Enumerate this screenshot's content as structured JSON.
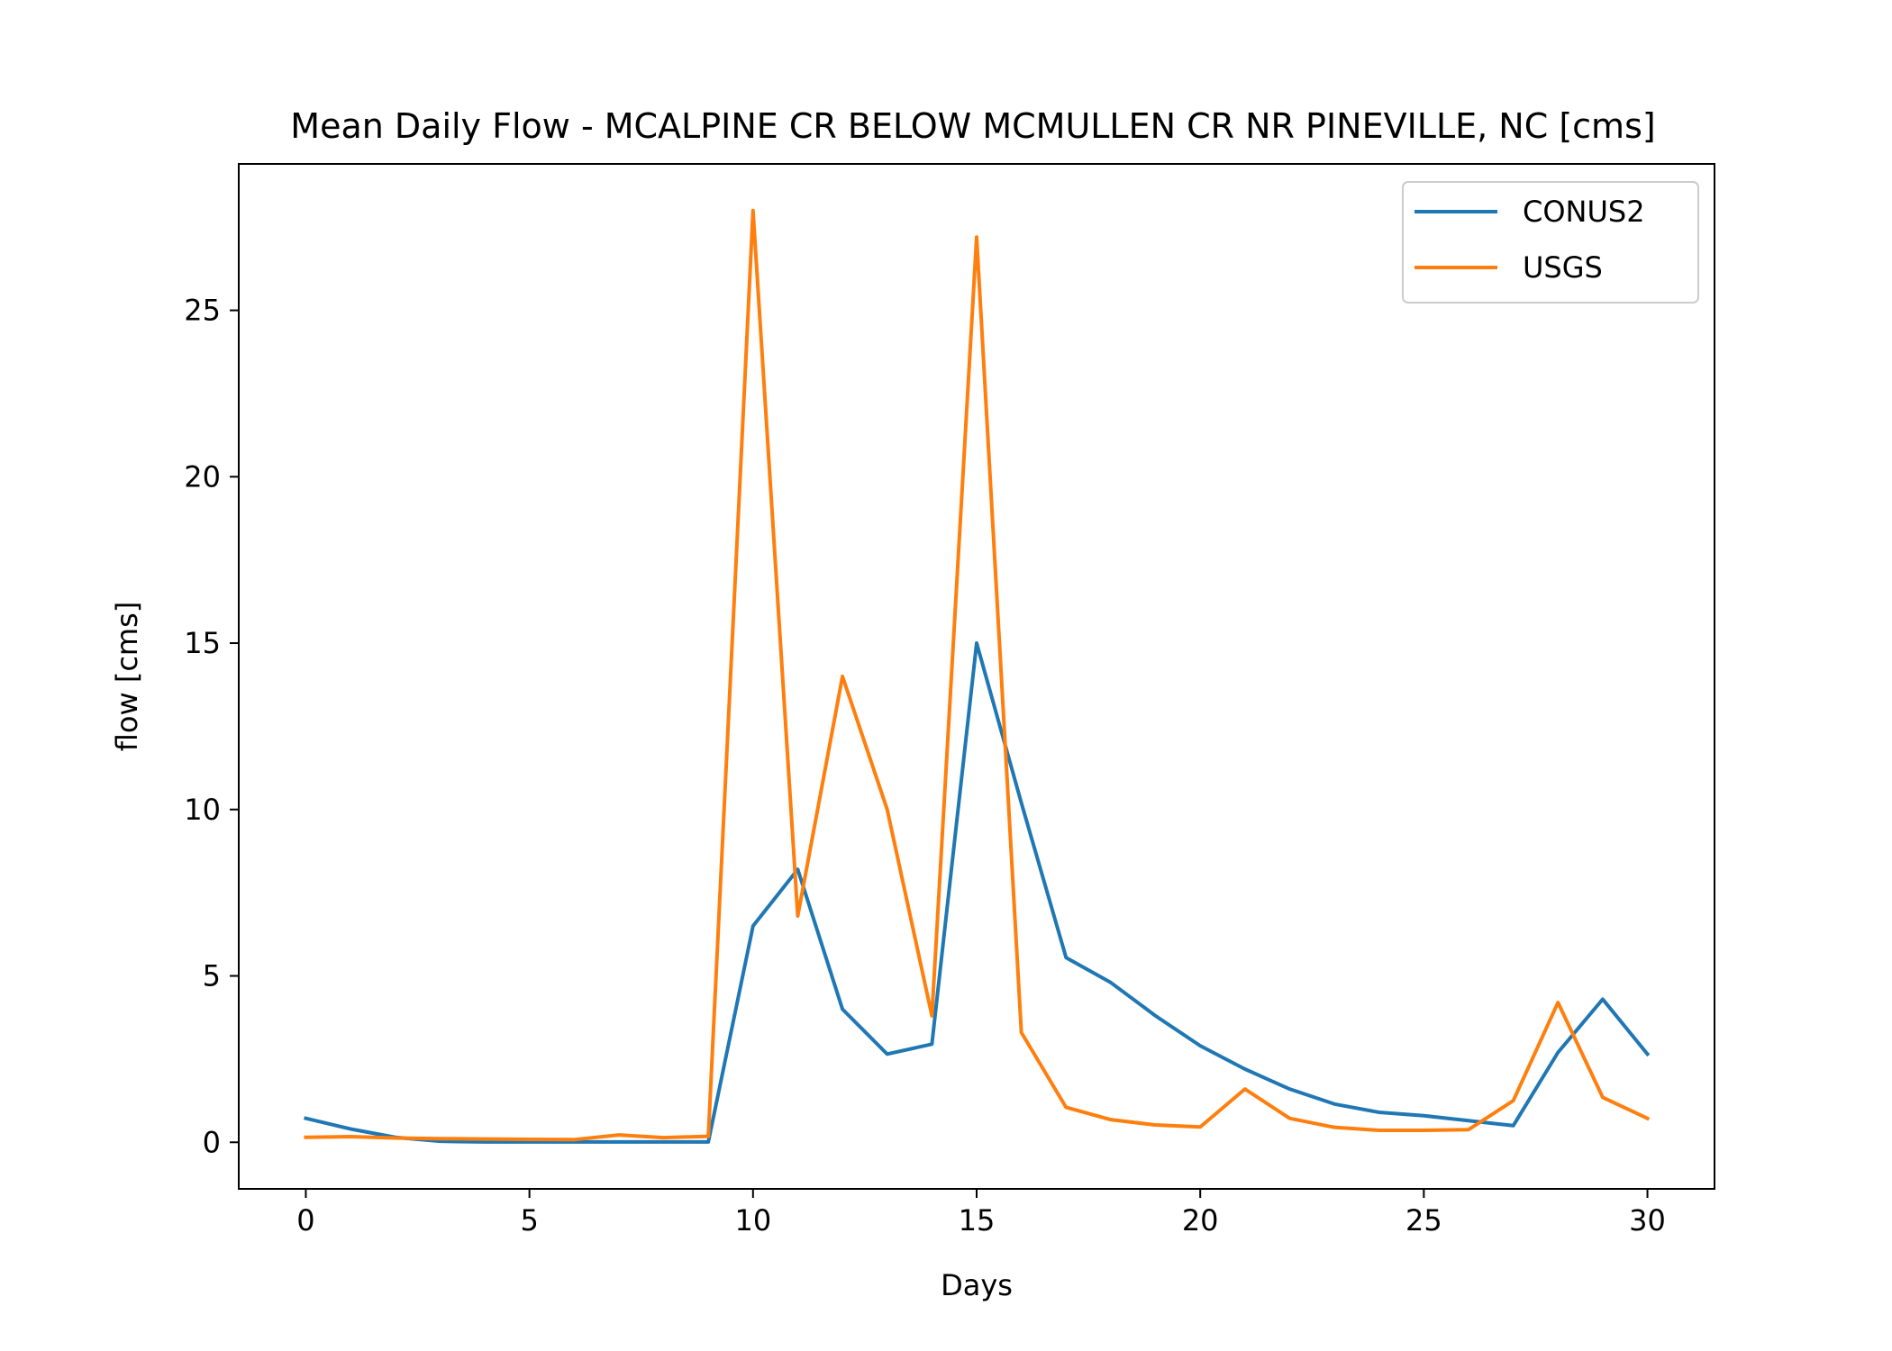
{
  "chart_data": {
    "type": "line",
    "title": "Mean Daily Flow - MCALPINE CR BELOW MCMULLEN CR NR PINEVILLE, NC [cms]",
    "xlabel": "Days",
    "ylabel": "flow [cms]",
    "xlim": [
      -1.5,
      31.5
    ],
    "ylim": [
      -1.4,
      29.4
    ],
    "xticks": [
      0,
      5,
      10,
      15,
      20,
      25,
      30
    ],
    "yticks": [
      0,
      5,
      10,
      15,
      20,
      25
    ],
    "grid": false,
    "legend_position": "upper right",
    "x": [
      0,
      1,
      2,
      3,
      4,
      5,
      6,
      7,
      8,
      9,
      10,
      11,
      12,
      13,
      14,
      15,
      16,
      17,
      18,
      19,
      20,
      21,
      22,
      23,
      24,
      25,
      26,
      27,
      28,
      29,
      30
    ],
    "series": [
      {
        "name": "CONUS2",
        "color": "#1f77b4",
        "values": [
          0.72,
          0.4,
          0.15,
          0.03,
          0.01,
          0.01,
          0.01,
          0.01,
          0.01,
          0.01,
          6.5,
          8.2,
          4.0,
          2.65,
          2.95,
          15.0,
          10.2,
          5.55,
          4.8,
          3.8,
          2.9,
          2.2,
          1.6,
          1.15,
          0.9,
          0.8,
          0.65,
          0.5,
          2.7,
          4.3,
          2.65
        ]
      },
      {
        "name": "USGS",
        "color": "#ff7f0e",
        "values": [
          0.15,
          0.17,
          0.13,
          0.11,
          0.1,
          0.09,
          0.08,
          0.22,
          0.14,
          0.18,
          28.0,
          6.8,
          14.0,
          10.0,
          3.8,
          27.2,
          3.3,
          1.05,
          0.68,
          0.52,
          0.46,
          1.6,
          0.72,
          0.45,
          0.36,
          0.36,
          0.38,
          1.25,
          4.2,
          1.35,
          0.72
        ]
      }
    ]
  }
}
